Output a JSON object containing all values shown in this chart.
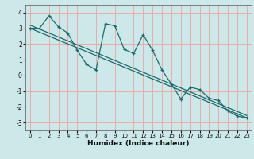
{
  "title": "",
  "xlabel": "Humidex (Indice chaleur)",
  "bg_color": "#cce8e8",
  "grid_color": "#f0a0a0",
  "line_color": "#1a6b6b",
  "xlim": [
    -0.5,
    23.5
  ],
  "ylim": [
    -3.5,
    4.5
  ],
  "yticks": [
    -3,
    -2,
    -1,
    0,
    1,
    2,
    3,
    4
  ],
  "xticks": [
    0,
    1,
    2,
    3,
    4,
    5,
    6,
    7,
    8,
    9,
    10,
    11,
    12,
    13,
    14,
    15,
    16,
    17,
    18,
    19,
    20,
    21,
    22,
    23
  ],
  "line1_x": [
    0,
    1,
    2,
    3,
    4,
    5,
    6,
    7,
    8,
    9,
    10,
    11,
    12,
    13,
    14,
    15,
    16,
    17,
    18,
    19,
    20,
    21,
    22,
    23
  ],
  "line1_y": [
    3.0,
    3.0,
    3.8,
    3.1,
    2.7,
    1.6,
    0.7,
    0.35,
    3.3,
    3.15,
    1.65,
    1.4,
    2.6,
    1.6,
    0.35,
    -0.55,
    -1.5,
    -0.75,
    -0.9,
    -1.45,
    -1.6,
    -2.25,
    -2.6,
    -2.7
  ],
  "line2_x": [
    0,
    23
  ],
  "line2_y": [
    3.0,
    -2.7
  ],
  "line3_x": [
    0,
    23
  ],
  "line3_y": [
    3.2,
    -2.55
  ]
}
